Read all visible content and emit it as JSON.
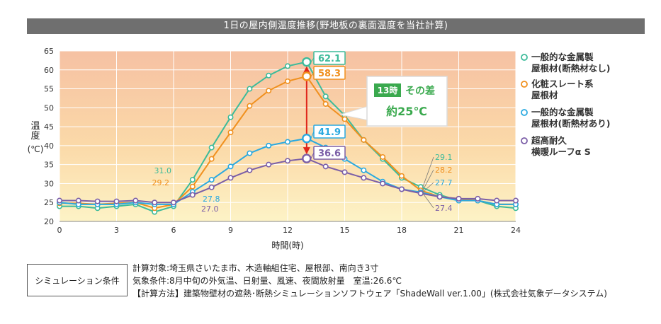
{
  "title": "1日の屋内側温度推移(野地板の裏面温度を当社計算)",
  "chart_data": {
    "type": "line",
    "title": "1日の屋内側温度推移(野地板の裏面温度を当社計算)",
    "xlabel": "時間(時)",
    "ylabel": "温度",
    "ylabel_unit": "(℃)",
    "xlim": [
      0,
      24
    ],
    "ylim": [
      20,
      65
    ],
    "x_ticks": [
      "0",
      "3",
      "6",
      "9",
      "12",
      "15",
      "18",
      "21",
      "24"
    ],
    "y_ticks": [
      "20",
      "25",
      "30",
      "35",
      "40",
      "45",
      "50",
      "55",
      "60",
      "65"
    ],
    "x": [
      0,
      1,
      2,
      3,
      4,
      5,
      6,
      7,
      8,
      9,
      10,
      11,
      12,
      13,
      14,
      15,
      16,
      17,
      18,
      19,
      20,
      21,
      22,
      23,
      24
    ],
    "series": [
      {
        "name": "一般的な金属製屋根材(断熱材なし)",
        "name_lines": [
          "一般的な金属製",
          "屋根材(断熱材なし)"
        ],
        "color": "#3dbb9a",
        "values": [
          24.0,
          24.0,
          23.5,
          24.0,
          24.5,
          22.5,
          24.0,
          31.0,
          39.5,
          47.5,
          55.0,
          58.5,
          61.0,
          62.1,
          53.0,
          48.0,
          41.5,
          36.5,
          31.5,
          29.1,
          27.0,
          25.5,
          25.5,
          24.0,
          23.5
        ]
      },
      {
        "name": "化粧スレート系屋根材",
        "name_lines": [
          "化粧スレート系",
          "屋根材"
        ],
        "color": "#f0901e",
        "values": [
          24.8,
          24.8,
          24.5,
          24.8,
          25.0,
          23.5,
          24.5,
          29.2,
          36.5,
          43.5,
          50.5,
          54.5,
          57.0,
          58.3,
          51.0,
          47.0,
          41.5,
          37.0,
          32.0,
          28.2,
          26.5,
          26.0,
          25.5,
          24.5,
          24.5
        ]
      },
      {
        "name": "一般的な金属製屋根材(断熱材あり)",
        "name_lines": [
          "一般的な金属製",
          "屋根材(断熱材あり)"
        ],
        "color": "#29a9e0",
        "values": [
          25.0,
          24.5,
          24.5,
          24.5,
          25.0,
          24.5,
          24.5,
          27.8,
          31.0,
          34.5,
          38.0,
          40.0,
          41.0,
          41.9,
          39.5,
          36.5,
          33.5,
          30.5,
          28.5,
          27.7,
          26.5,
          25.5,
          25.5,
          24.5,
          24.5
        ]
      },
      {
        "name": "超高耐久横暖ルーフα S",
        "name_lines": [
          "超高耐久",
          "横暖ルーフα S"
        ],
        "color": "#7b5ea7",
        "values": [
          25.5,
          25.5,
          25.3,
          25.3,
          25.5,
          25.0,
          25.0,
          27.0,
          29.0,
          31.5,
          33.5,
          35.0,
          36.0,
          36.6,
          34.5,
          33.0,
          31.5,
          30.0,
          28.5,
          27.4,
          26.5,
          26.0,
          26.0,
          25.5,
          25.5
        ]
      }
    ],
    "annotations": {
      "peak_labels": [
        "62.1",
        "58.3",
        "41.9",
        "36.6"
      ],
      "left_labels": [
        "31.0",
        "29.2",
        "27.8",
        "27.0"
      ],
      "right_labels": [
        "29.1",
        "28.2",
        "27.7",
        "27.4"
      ],
      "diff_badge": "13時",
      "diff_text1": "その差",
      "diff_text2": "約25℃"
    }
  },
  "conditions": {
    "label": "シミュレーション条件",
    "line1": "計算対象:埼玉県さいたま市、木造軸組住宅、屋根部、南向き3寸",
    "line2": "気象条件:8月中旬の外気温、日射量、風速、夜間放射量　室温:26.6℃",
    "line3": "【計算方法】建築物壁材の遮熱･断熱シミュレーションソフトウェア「ShadeWall ver.1.00」(株式会社気象データシステム)"
  }
}
